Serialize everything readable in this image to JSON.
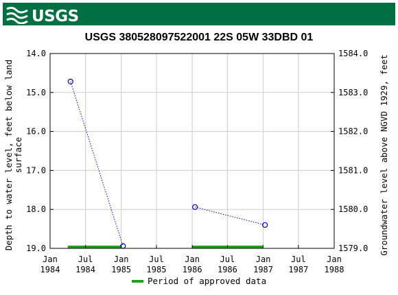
{
  "header": {
    "logo_text": "USGS"
  },
  "chart_data": {
    "type": "scatter",
    "title": "USGS 380528097522001 22S 05W 33DBD 01",
    "ylabel_left_line1": "Depth to water level, feet below land",
    "ylabel_left_line2": "surface",
    "ylabel_right": "Groundwater level above NGVD 1929, feet",
    "xlim": [
      "1984-01-01",
      "1988-01-01"
    ],
    "ylim_left": [
      14.0,
      19.0
    ],
    "ylim_right": [
      1579.0,
      1584.0
    ],
    "y_inverted": true,
    "grid": true,
    "x_ticks": [
      {
        "date": "1984-01-01",
        "line1": "Jan",
        "line2": "1984"
      },
      {
        "date": "1984-07-01",
        "line1": "Jul",
        "line2": "1984"
      },
      {
        "date": "1985-01-01",
        "line1": "Jan",
        "line2": "1985"
      },
      {
        "date": "1985-07-01",
        "line1": "Jul",
        "line2": "1985"
      },
      {
        "date": "1986-01-01",
        "line1": "Jan",
        "line2": "1986"
      },
      {
        "date": "1986-07-01",
        "line1": "Jul",
        "line2": "1986"
      },
      {
        "date": "1987-01-01",
        "line1": "Jan",
        "line2": "1987"
      },
      {
        "date": "1987-07-01",
        "line1": "Jul",
        "line2": "1987"
      },
      {
        "date": "1988-01-01",
        "line1": "Jan",
        "line2": "1988"
      }
    ],
    "y_ticks_left": [
      "14.0",
      "15.0",
      "16.0",
      "17.0",
      "18.0",
      "19.0"
    ],
    "y_ticks_right": [
      "1584.0",
      "1583.0",
      "1582.0",
      "1581.0",
      "1580.0",
      "1579.0"
    ],
    "series": [
      {
        "segments": [
          [
            {
              "date": "1984-04-15",
              "depth": 14.72
            },
            {
              "date": "1985-01-10",
              "depth": 18.94
            }
          ],
          [
            {
              "date": "1986-01-15",
              "depth": 17.94
            },
            {
              "date": "1987-01-10",
              "depth": 18.4
            }
          ]
        ],
        "color": "#0000cc"
      }
    ],
    "approved_periods": [
      {
        "start": "1984-04-01",
        "end": "1985-01-01"
      },
      {
        "start": "1986-01-01",
        "end": "1987-01-01"
      }
    ],
    "approved_color": "#22a022",
    "legend": {
      "label": "Period of approved data",
      "position": "bottom"
    }
  }
}
